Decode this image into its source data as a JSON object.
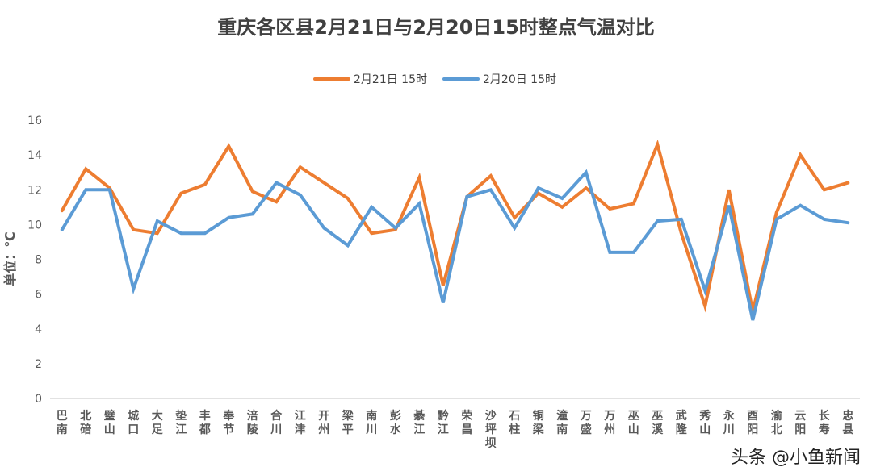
{
  "chart_data": {
    "type": "line",
    "title": "重庆各区县2月21日与2月20日15时整点气温对比",
    "xlabel": "",
    "ylabel": "单位：℃",
    "ylim": [
      0,
      16
    ],
    "yticks": [
      0,
      2,
      4,
      6,
      8,
      10,
      12,
      14,
      16
    ],
    "grid": false,
    "legend_position": "top",
    "categories": [
      "巴南",
      "北碚",
      "璧山",
      "城口",
      "大足",
      "垫江",
      "丰都",
      "奉节",
      "涪陵",
      "合川",
      "江津",
      "开州",
      "梁平",
      "南川",
      "彭水",
      "綦江",
      "黔江",
      "荣昌",
      "沙坪坝",
      "石柱",
      "铜梁",
      "潼南",
      "万盛",
      "万州",
      "巫山",
      "巫溪",
      "武隆",
      "秀山",
      "永川",
      "酉阳",
      "渝北",
      "云阳",
      "长寿",
      "忠县"
    ],
    "series": [
      {
        "name": "2月21日 15时",
        "color": "#ED7D31",
        "values": [
          10.8,
          13.2,
          12.1,
          9.7,
          9.5,
          11.8,
          12.3,
          14.5,
          11.9,
          11.3,
          13.3,
          12.4,
          11.5,
          9.5,
          9.7,
          12.7,
          6.5,
          11.6,
          12.8,
          10.4,
          11.8,
          11.0,
          12.1,
          10.9,
          11.2,
          14.6,
          9.5,
          5.3,
          12.0,
          5.0,
          10.7,
          14.0,
          12.0,
          12.4
        ]
      },
      {
        "name": "2月20日 15时",
        "color": "#5B9BD5",
        "values": [
          9.7,
          12.0,
          12.0,
          6.3,
          10.2,
          9.5,
          9.5,
          10.4,
          10.6,
          12.4,
          11.7,
          9.8,
          8.8,
          11.0,
          9.8,
          11.2,
          5.5,
          11.6,
          12.0,
          9.8,
          12.1,
          11.5,
          13.0,
          8.4,
          8.4,
          10.2,
          10.3,
          6.2,
          11.1,
          4.5,
          10.3,
          11.1,
          10.3,
          10.1
        ]
      }
    ]
  },
  "watermark": "头条 @小鱼新闻"
}
